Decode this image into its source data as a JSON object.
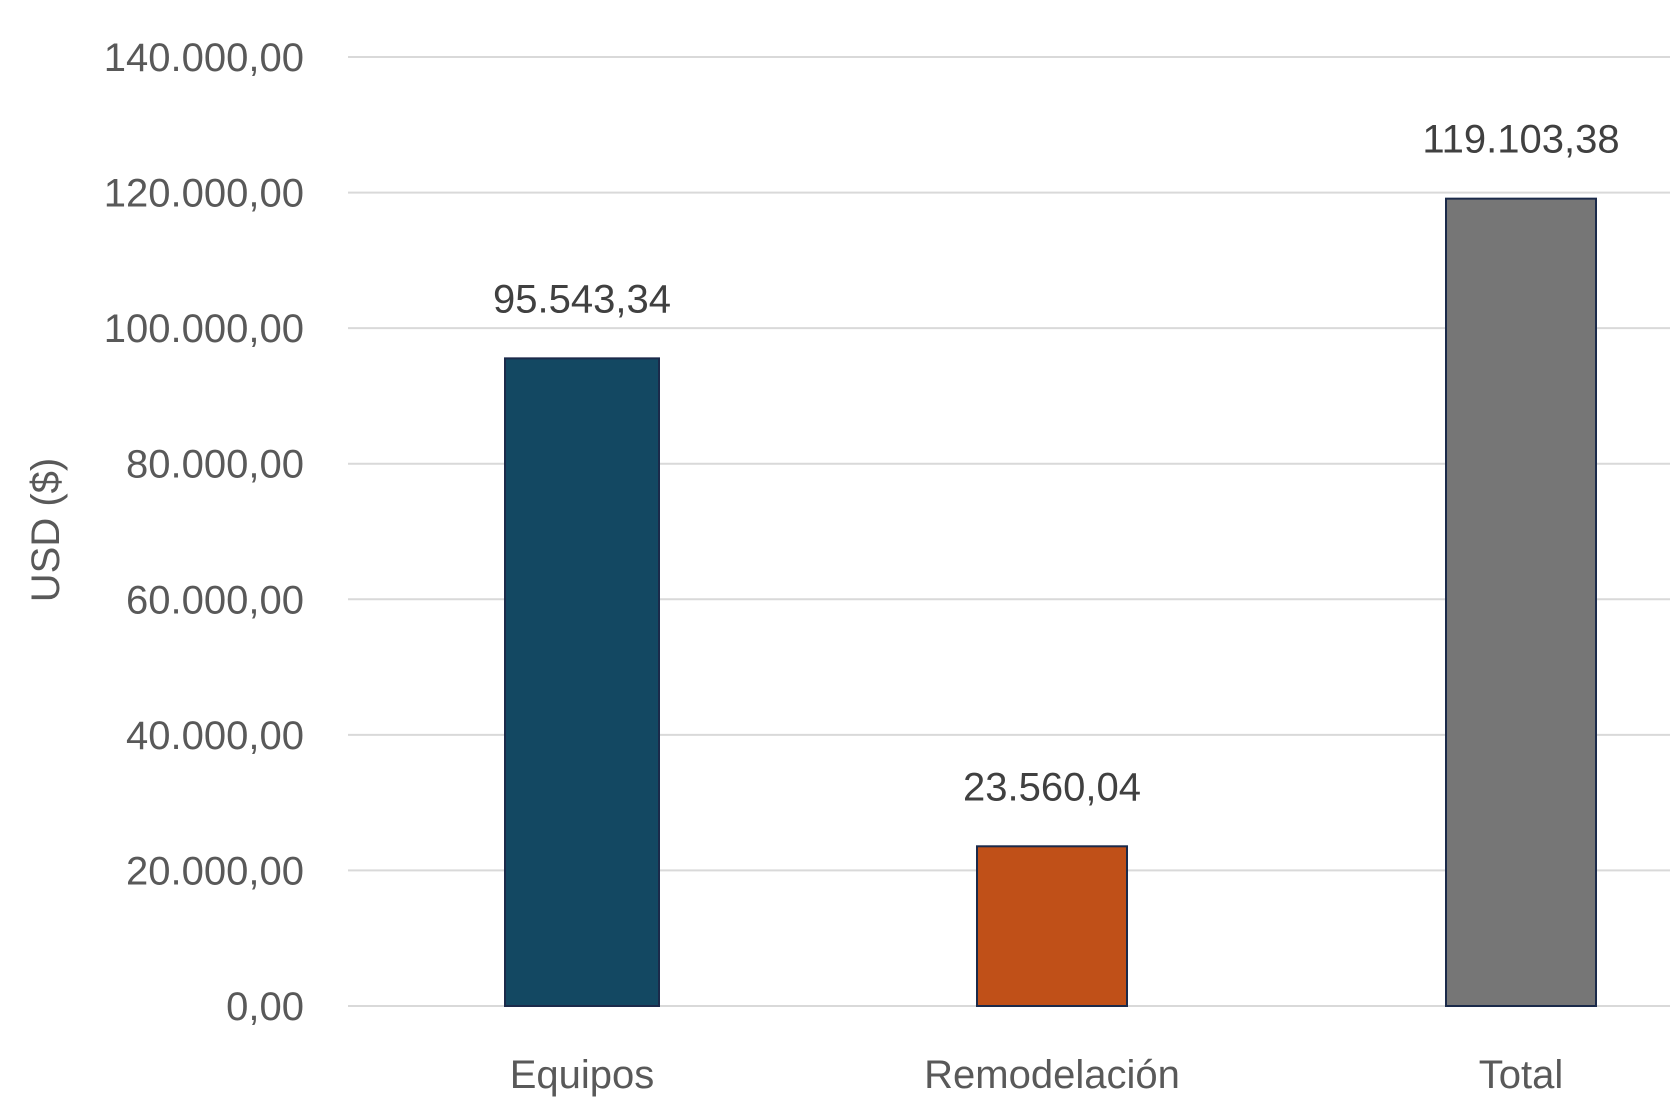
{
  "chart_data": {
    "type": "bar",
    "categories": [
      "Equipos",
      "Remodelación",
      "Total"
    ],
    "values": [
      95543.34,
      23560.04,
      119103.38
    ],
    "data_labels": [
      "95.543,34",
      "23.560,04",
      "119.103,38"
    ],
    "bar_colors": [
      "#134862",
      "#c05018",
      "#767676"
    ],
    "title": "",
    "xlabel": "",
    "ylabel": "USD ($)",
    "ylim": [
      0,
      140000
    ],
    "yticks": [
      0,
      20000,
      40000,
      60000,
      80000,
      100000,
      120000,
      140000
    ],
    "ytick_labels": [
      "0,00",
      "20.000,00",
      "40.000,00",
      "60.000,00",
      "80.000,00",
      "100.000,00",
      "120.000,00",
      "140.000,00"
    ],
    "grid": true,
    "legend": "none"
  }
}
